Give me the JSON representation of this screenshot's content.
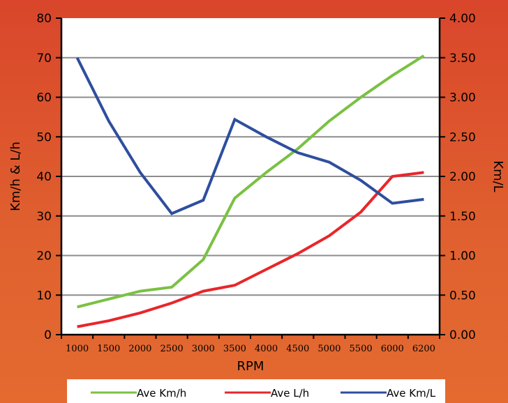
{
  "chart_data": {
    "type": "line",
    "xlabel": "RPM",
    "ylabel_left": "Km/h & L/h",
    "ylabel_right": "Km/L",
    "categories": [
      "1000",
      "1500",
      "2000",
      "2500",
      "3000",
      "3500",
      "4000",
      "4500",
      "5000",
      "5500",
      "6000",
      "6200"
    ],
    "left_ticks": [
      "0",
      "10",
      "20",
      "30",
      "40",
      "50",
      "60",
      "70",
      "80"
    ],
    "right_ticks": [
      "0.00",
      "0.50",
      "1.00",
      "1.50",
      "2.00",
      "2.50",
      "3.00",
      "3.50",
      "4.00"
    ],
    "ylim_left": [
      0,
      80
    ],
    "ylim_right": [
      0,
      4
    ],
    "grid": true,
    "legend_position": "bottom",
    "series": [
      {
        "name": "Ave Km/h",
        "axis": "left",
        "color": "#7ac143",
        "values": [
          7,
          9,
          11,
          12,
          19,
          34.5,
          41,
          47,
          54,
          60,
          65.5,
          70.5
        ]
      },
      {
        "name": "Ave L/h",
        "axis": "left",
        "color": "#e8262a",
        "values": [
          2,
          3.5,
          5.5,
          8,
          11,
          12.5,
          16.5,
          20.5,
          25,
          31,
          40,
          41
        ]
      },
      {
        "name": "Ave Km/L",
        "axis": "right",
        "color": "#2e4e9e",
        "values": [
          3.5,
          2.7,
          2.05,
          1.53,
          1.7,
          2.72,
          2.5,
          2.3,
          2.18,
          1.95,
          1.66,
          1.71
        ]
      }
    ]
  }
}
